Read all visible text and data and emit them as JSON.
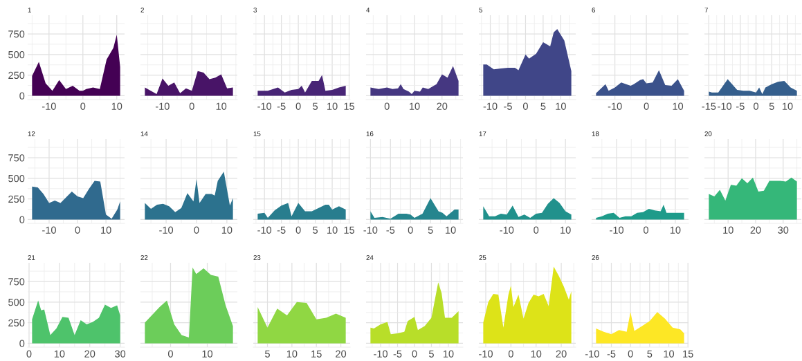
{
  "chart_data": [
    {
      "type": "area",
      "title": "1",
      "color": "#440154",
      "x": [
        -15,
        -13,
        -11,
        -9,
        -7,
        -5,
        -3,
        -1,
        0,
        1,
        3,
        5,
        7,
        9,
        10,
        11
      ],
      "values": [
        240,
        410,
        150,
        60,
        190,
        80,
        120,
        60,
        60,
        80,
        100,
        80,
        440,
        580,
        740,
        350
      ],
      "xlim": [
        -16.3,
        12.3
      ],
      "xticks": [
        -10,
        0,
        10
      ],
      "ylim": [
        -47,
        977
      ],
      "yticks": [
        0,
        250,
        500,
        750
      ],
      "grid": true
    },
    {
      "type": "area",
      "title": "2",
      "color": "#481467",
      "x": [
        -16,
        -12,
        -10,
        -8,
        -6,
        -4,
        -2,
        0,
        2,
        4,
        6,
        8,
        10,
        12,
        14
      ],
      "values": [
        100,
        20,
        210,
        120,
        160,
        30,
        90,
        60,
        300,
        280,
        200,
        220,
        260,
        90,
        100
      ],
      "xlim": [
        -17.5,
        15.5
      ],
      "xticks": [
        -10,
        0,
        10
      ],
      "ylim": [
        -47,
        977
      ],
      "yticks": [
        0,
        250,
        500,
        750
      ],
      "grid": true,
      "tick_labels": "x"
    },
    {
      "type": "area",
      "title": "3",
      "color": "#482576",
      "x": [
        -12,
        -9,
        -6,
        -4,
        -2,
        0,
        1,
        2,
        4,
        6,
        7,
        8,
        10,
        12,
        14
      ],
      "values": [
        60,
        60,
        100,
        40,
        70,
        80,
        120,
        40,
        180,
        180,
        250,
        60,
        70,
        100,
        120
      ],
      "xlim": [
        -13.3,
        15.3
      ],
      "xticks": [
        -10,
        -5,
        0,
        5,
        10,
        15
      ],
      "ylim": [
        -47,
        977
      ],
      "yticks": [
        0,
        250,
        500,
        750
      ],
      "grid": true,
      "tick_labels": "x"
    },
    {
      "type": "area",
      "title": "4",
      "color": "#453781",
      "x": [
        -6,
        -3,
        0,
        2,
        4,
        5,
        6,
        8,
        9,
        10,
        12,
        13,
        15,
        17,
        18,
        20,
        22,
        24,
        26
      ],
      "values": [
        100,
        80,
        100,
        80,
        90,
        140,
        80,
        50,
        20,
        60,
        50,
        100,
        80,
        120,
        140,
        260,
        220,
        360,
        180
      ],
      "xlim": [
        -7.6,
        27.6
      ],
      "xticks": [
        0,
        10,
        20
      ],
      "ylim": [
        -47,
        977
      ],
      "yticks": [
        0,
        250,
        500,
        750
      ],
      "grid": true,
      "tick_labels": "x"
    },
    {
      "type": "area",
      "title": "5",
      "color": "#404688",
      "x": [
        -12,
        -11,
        -9,
        -7,
        -5,
        -3,
        -2,
        0,
        1,
        3,
        5,
        7,
        8,
        9,
        11,
        13
      ],
      "values": [
        380,
        380,
        320,
        330,
        340,
        340,
        310,
        500,
        450,
        510,
        650,
        600,
        770,
        810,
        670,
        300
      ],
      "xlim": [
        -13.25,
        14.25
      ],
      "xticks": [
        -10,
        -5,
        0,
        5,
        10
      ],
      "ylim": [
        -47,
        977
      ],
      "yticks": [
        0,
        250,
        500,
        750
      ],
      "grid": true,
      "tick_labels": "x"
    },
    {
      "type": "area",
      "title": "6",
      "color": "#3b528b",
      "x": [
        -16,
        -13,
        -12,
        -10,
        -8,
        -5,
        -4,
        -2,
        -1,
        0,
        2,
        4,
        6,
        8,
        10,
        12
      ],
      "values": [
        30,
        140,
        60,
        100,
        160,
        120,
        140,
        190,
        200,
        150,
        160,
        310,
        130,
        120,
        200,
        60
      ],
      "xlim": [
        -17.4,
        13.4
      ],
      "xticks": [
        -10,
        0,
        10
      ],
      "ylim": [
        -47,
        977
      ],
      "yticks": [
        0,
        250,
        500,
        750
      ],
      "grid": true,
      "tick_labels": "x"
    },
    {
      "type": "area",
      "title": "7",
      "color": "#355f8d",
      "x": [
        -15,
        -14,
        -12,
        -9,
        -6,
        -4,
        -2,
        0,
        1,
        2,
        3,
        5,
        7,
        9,
        11,
        13
      ],
      "values": [
        50,
        40,
        40,
        200,
        70,
        60,
        60,
        40,
        100,
        20,
        100,
        140,
        170,
        180,
        100,
        60
      ],
      "xlim": [
        -16.4,
        14.4
      ],
      "xticks": [
        -15,
        -10,
        -5,
        0,
        5,
        10
      ],
      "ylim": [
        -47,
        977
      ],
      "yticks": [
        0,
        250,
        500,
        750
      ],
      "grid": true,
      "tick_labels": "x"
    },
    {
      "type": "area",
      "title": "12",
      "color": "#306a8e",
      "x": [
        -16,
        -14,
        -12,
        -10,
        -8,
        -6,
        -4,
        -2,
        0,
        2,
        4,
        6,
        8,
        10,
        12,
        14,
        15
      ],
      "values": [
        400,
        390,
        310,
        200,
        230,
        200,
        270,
        340,
        280,
        260,
        370,
        470,
        460,
        60,
        10,
        120,
        220
      ],
      "xlim": [
        -17.55,
        16.55
      ],
      "xticks": [
        -10,
        0,
        10
      ],
      "ylim": [
        -47,
        977
      ],
      "yticks": [
        0,
        250,
        500,
        750
      ],
      "grid": true
    },
    {
      "type": "area",
      "title": "14",
      "color": "#2c728e",
      "x": [
        -17,
        -15,
        -13,
        -11,
        -9,
        -7,
        -5,
        -3,
        -1,
        0,
        1,
        3,
        5,
        6,
        7,
        9,
        11,
        12
      ],
      "values": [
        200,
        130,
        180,
        190,
        160,
        90,
        140,
        320,
        220,
        490,
        200,
        310,
        310,
        290,
        470,
        580,
        170,
        260
      ],
      "xlim": [
        -18.45,
        13.45
      ],
      "xticks": [
        -10,
        0,
        10
      ],
      "ylim": [
        -47,
        977
      ],
      "yticks": [
        0,
        250,
        500,
        750
      ],
      "grid": true,
      "tick_labels": "x"
    },
    {
      "type": "area",
      "title": "15",
      "color": "#287d8e",
      "x": [
        -12,
        -10,
        -9,
        -7,
        -5,
        -3,
        -2,
        0,
        2,
        4,
        6,
        8,
        9,
        10,
        12,
        14
      ],
      "values": [
        70,
        80,
        20,
        110,
        170,
        200,
        40,
        200,
        100,
        100,
        140,
        180,
        180,
        120,
        160,
        120
      ],
      "xlim": [
        -13.3,
        15.3
      ],
      "xticks": [
        -10,
        -5,
        0,
        5,
        10,
        15
      ],
      "ylim": [
        -47,
        977
      ],
      "yticks": [
        0,
        250,
        500,
        750
      ],
      "grid": true,
      "tick_labels": "x"
    },
    {
      "type": "area",
      "title": "16",
      "color": "#25858e",
      "x": [
        -10,
        -9,
        -7,
        -5,
        -3,
        -1,
        0,
        1,
        3,
        5,
        7,
        8,
        9,
        11,
        12
      ],
      "values": [
        100,
        20,
        30,
        10,
        70,
        70,
        60,
        20,
        70,
        260,
        100,
        80,
        40,
        120,
        120
      ],
      "xlim": [
        -11.1,
        13.1
      ],
      "xticks": [
        -10,
        -5,
        0,
        5,
        10
      ],
      "ylim": [
        -47,
        977
      ],
      "yticks": [
        0,
        250,
        500,
        750
      ],
      "grid": true,
      "tick_labels": "x"
    },
    {
      "type": "area",
      "title": "17",
      "color": "#21918c",
      "x": [
        -18,
        -16,
        -14,
        -12,
        -10,
        -8,
        -6,
        -4,
        -2,
        0,
        2,
        4,
        6,
        8,
        10,
        12
      ],
      "values": [
        160,
        40,
        40,
        70,
        60,
        170,
        30,
        60,
        20,
        70,
        80,
        190,
        260,
        200,
        100,
        60
      ],
      "xlim": [
        -19.5,
        13.5
      ],
      "xticks": [
        -10,
        0,
        10
      ],
      "ylim": [
        -47,
        977
      ],
      "yticks": [
        0,
        250,
        500,
        750
      ],
      "grid": true,
      "tick_labels": "x"
    },
    {
      "type": "area",
      "title": "18",
      "color": "#1e9b8a",
      "x": [
        -17,
        -15,
        -13,
        -11,
        -9,
        -7,
        -5,
        -3,
        -1,
        1,
        3,
        5,
        6,
        7,
        9,
        11,
        12,
        13
      ],
      "values": [
        20,
        40,
        70,
        80,
        20,
        40,
        40,
        80,
        90,
        130,
        110,
        100,
        180,
        80,
        80,
        80,
        80,
        80
      ],
      "xlim": [
        -18.5,
        14.5
      ],
      "xticks": [
        -10,
        0,
        10
      ],
      "ylim": [
        -47,
        977
      ],
      "yticks": [
        0,
        250,
        500,
        750
      ],
      "grid": true,
      "tick_labels": "x"
    },
    {
      "type": "area",
      "title": "20",
      "color": "#35b779",
      "x": [
        3,
        5,
        7,
        9,
        11,
        13,
        15,
        17,
        19,
        21,
        23,
        25,
        27,
        29,
        31,
        33,
        35
      ],
      "values": [
        310,
        280,
        360,
        230,
        420,
        410,
        500,
        440,
        510,
        340,
        350,
        470,
        470,
        470,
        460,
        510,
        460
      ],
      "xlim": [
        1.4,
        36.6
      ],
      "xticks": [
        10,
        20,
        30
      ],
      "ylim": [
        -47,
        977
      ],
      "yticks": [
        0,
        250,
        500,
        750
      ],
      "grid": true,
      "tick_labels": "x"
    },
    {
      "type": "area",
      "title": "21",
      "color": "#4ec36b",
      "x": [
        1,
        3,
        4,
        5,
        7,
        9,
        11,
        13,
        15,
        17,
        19,
        21,
        23,
        25,
        27,
        29,
        30
      ],
      "values": [
        290,
        520,
        400,
        410,
        100,
        180,
        320,
        310,
        100,
        280,
        230,
        260,
        310,
        470,
        430,
        460,
        340
      ],
      "xlim": [
        -0.45,
        31.45
      ],
      "xticks": [
        0,
        10,
        20,
        30
      ],
      "ylim": [
        -47,
        977
      ],
      "yticks": [
        0,
        250,
        500,
        750
      ],
      "grid": true
    },
    {
      "type": "area",
      "title": "22",
      "color": "#6ccd5a",
      "x": [
        -7,
        -3,
        -1,
        1,
        3,
        5,
        6,
        7,
        9,
        11,
        13,
        15,
        17
      ],
      "values": [
        250,
        440,
        520,
        230,
        100,
        70,
        920,
        840,
        910,
        830,
        810,
        460,
        210
      ],
      "xlim": [
        -8.2,
        18.2
      ],
      "xticks": [
        0,
        10
      ],
      "ylim": [
        -47,
        977
      ],
      "yticks": [
        0,
        250,
        500,
        750
      ],
      "grid": true,
      "tick_labels": "x"
    },
    {
      "type": "area",
      "title": "23",
      "color": "#90d743",
      "x": [
        3,
        5,
        7,
        9,
        11,
        13,
        15,
        17,
        19,
        21
      ],
      "values": [
        440,
        190,
        420,
        340,
        500,
        490,
        290,
        310,
        360,
        310
      ],
      "xlim": [
        2.1,
        21.9
      ],
      "xticks": [
        5,
        10,
        15,
        20
      ],
      "ylim": [
        -47,
        977
      ],
      "yticks": [
        0,
        250,
        500,
        750
      ],
      "grid": true,
      "tick_labels": "x"
    },
    {
      "type": "area",
      "title": "24",
      "color": "#b8de29",
      "x": [
        -13,
        -12,
        -10,
        -8,
        -7,
        -5,
        -3,
        -2,
        0,
        1,
        3,
        5,
        7,
        8,
        9,
        11,
        13
      ],
      "values": [
        190,
        180,
        230,
        260,
        110,
        120,
        140,
        270,
        320,
        160,
        210,
        310,
        740,
        610,
        310,
        310,
        390
      ],
      "xlim": [
        -14.3,
        14.3
      ],
      "xticks": [
        -10,
        -5,
        0,
        5,
        10
      ],
      "ylim": [
        -47,
        977
      ],
      "yticks": [
        0,
        250,
        500,
        750
      ],
      "grid": true,
      "tick_labels": "x"
    },
    {
      "type": "area",
      "title": "25",
      "color": "#dde318",
      "x": [
        -11,
        -9,
        -7,
        -5,
        -3,
        -1,
        0,
        1,
        3,
        5,
        7,
        9,
        11,
        13,
        15,
        17,
        19,
        21,
        23,
        24
      ],
      "values": [
        250,
        500,
        600,
        590,
        190,
        590,
        700,
        440,
        590,
        300,
        490,
        590,
        570,
        600,
        450,
        930,
        820,
        690,
        530,
        630
      ],
      "xlim": [
        -12.75,
        25.75
      ],
      "xticks": [
        -10,
        0,
        10,
        20
      ],
      "ylim": [
        -47,
        977
      ],
      "yticks": [
        0,
        250,
        500,
        750
      ],
      "grid": true,
      "tick_labels": "x"
    },
    {
      "type": "area",
      "title": "26",
      "color": "#fde725",
      "x": [
        -9,
        -7,
        -5,
        -3,
        -1,
        0,
        1,
        3,
        5,
        7,
        9,
        11,
        13,
        14
      ],
      "values": [
        180,
        140,
        110,
        160,
        140,
        380,
        150,
        210,
        270,
        380,
        300,
        190,
        170,
        120
      ],
      "xlim": [
        -10.15,
        15.15
      ],
      "xticks": [
        -10,
        -5,
        0,
        5,
        10,
        15
      ],
      "ylim": [
        -47,
        977
      ],
      "yticks": [
        0,
        250,
        500,
        750
      ],
      "grid": true,
      "tick_labels": "x"
    }
  ]
}
